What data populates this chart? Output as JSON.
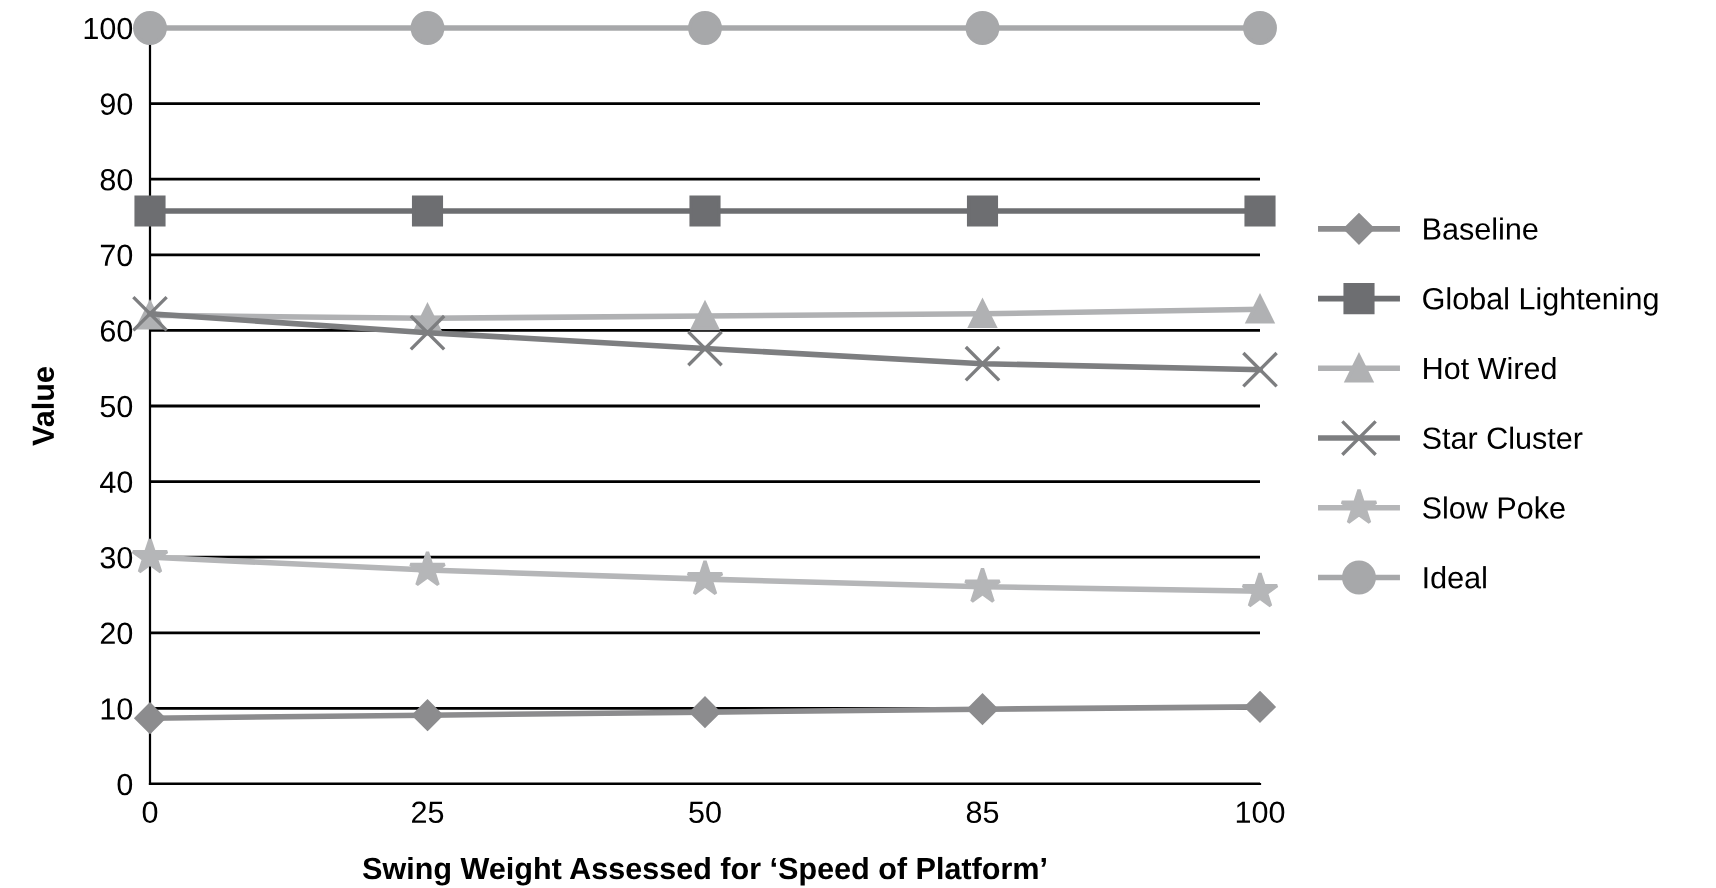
{
  "chart_data": {
    "type": "line",
    "xlabel": "Swing Weight Assessed for ‘Speed of Platform’",
    "ylabel": "Value",
    "categories": [
      "0",
      "25",
      "50",
      "85",
      "100"
    ],
    "series": [
      {
        "name": "Baseline",
        "color": "#8c8c8e",
        "marker": "diamond",
        "values": [
          8.7,
          9.1,
          9.5,
          9.9,
          10.2
        ]
      },
      {
        "name": "Global Lightening",
        "color": "#6d6e71",
        "marker": "square",
        "values": [
          75.8,
          75.8,
          75.8,
          75.8,
          75.8
        ]
      },
      {
        "name": "Hot Wired",
        "color": "#b0b1b3",
        "marker": "triangle",
        "values": [
          62,
          61.6,
          61.9,
          62.2,
          62.8
        ]
      },
      {
        "name": "Star Cluster",
        "color": "#7d7e80",
        "marker": "cross",
        "values": [
          62.2,
          59.7,
          57.6,
          55.6,
          54.8
        ]
      },
      {
        "name": "Slow Poke",
        "color": "#b5b6b8",
        "marker": "star",
        "values": [
          30,
          28.3,
          27.1,
          26.1,
          25.5
        ]
      },
      {
        "name": "Ideal",
        "color": "#a7a8aa",
        "marker": "circle",
        "values": [
          100,
          100,
          100,
          100,
          100
        ]
      }
    ],
    "ylim": [
      0,
      100
    ],
    "yticks": [
      0,
      10,
      20,
      30,
      40,
      50,
      60,
      70,
      80,
      90,
      100
    ],
    "grid": "y",
    "legend": "right",
    "line_style": "solid"
  }
}
